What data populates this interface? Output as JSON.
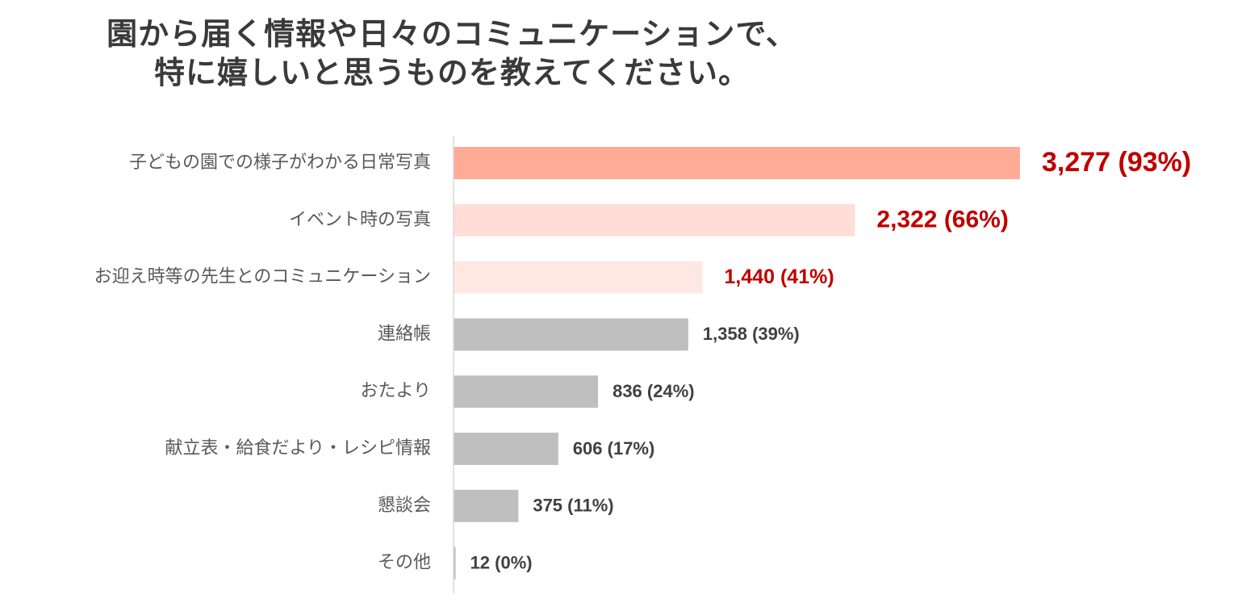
{
  "title": {
    "line1": "園から届く情報や日々のコミュニケーションで、",
    "line2": "特に嬉しいと思うものを教えてください。"
  },
  "chart_data": {
    "type": "bar",
    "orientation": "horizontal",
    "categories": [
      "子どもの園での様子がわかる日常写真",
      "イベント時の写真",
      "お迎え時等の先生とのコミュニケーション",
      "連絡帳",
      "おたより",
      "献立表・給食だより・レシピ情報",
      "懇談会",
      "その他"
    ],
    "values": [
      3277,
      2322,
      1440,
      1358,
      836,
      606,
      375,
      12
    ],
    "value_labels": [
      "3,277 (93%)",
      "2,322 (66%)",
      "1,440 (41%)",
      "1,358 (39%)",
      "836 (24%)",
      "606 (17%)",
      "375 (11%)",
      "12 (0%)"
    ],
    "percentages": [
      93,
      66,
      41,
      39,
      24,
      17,
      11,
      0
    ],
    "bar_colors": [
      "#ffab96",
      "#ffded7",
      "#ffe7e2",
      "#bfbfbf",
      "#bfbfbf",
      "#bfbfbf",
      "#bfbfbf",
      "#bfbfbf"
    ],
    "label_colors": [
      "#c00000",
      "#c00000",
      "#c00000",
      "#404040",
      "#404040",
      "#404040",
      "#404040",
      "#404040"
    ],
    "xlim": [
      0,
      3277
    ],
    "grid": false
  }
}
